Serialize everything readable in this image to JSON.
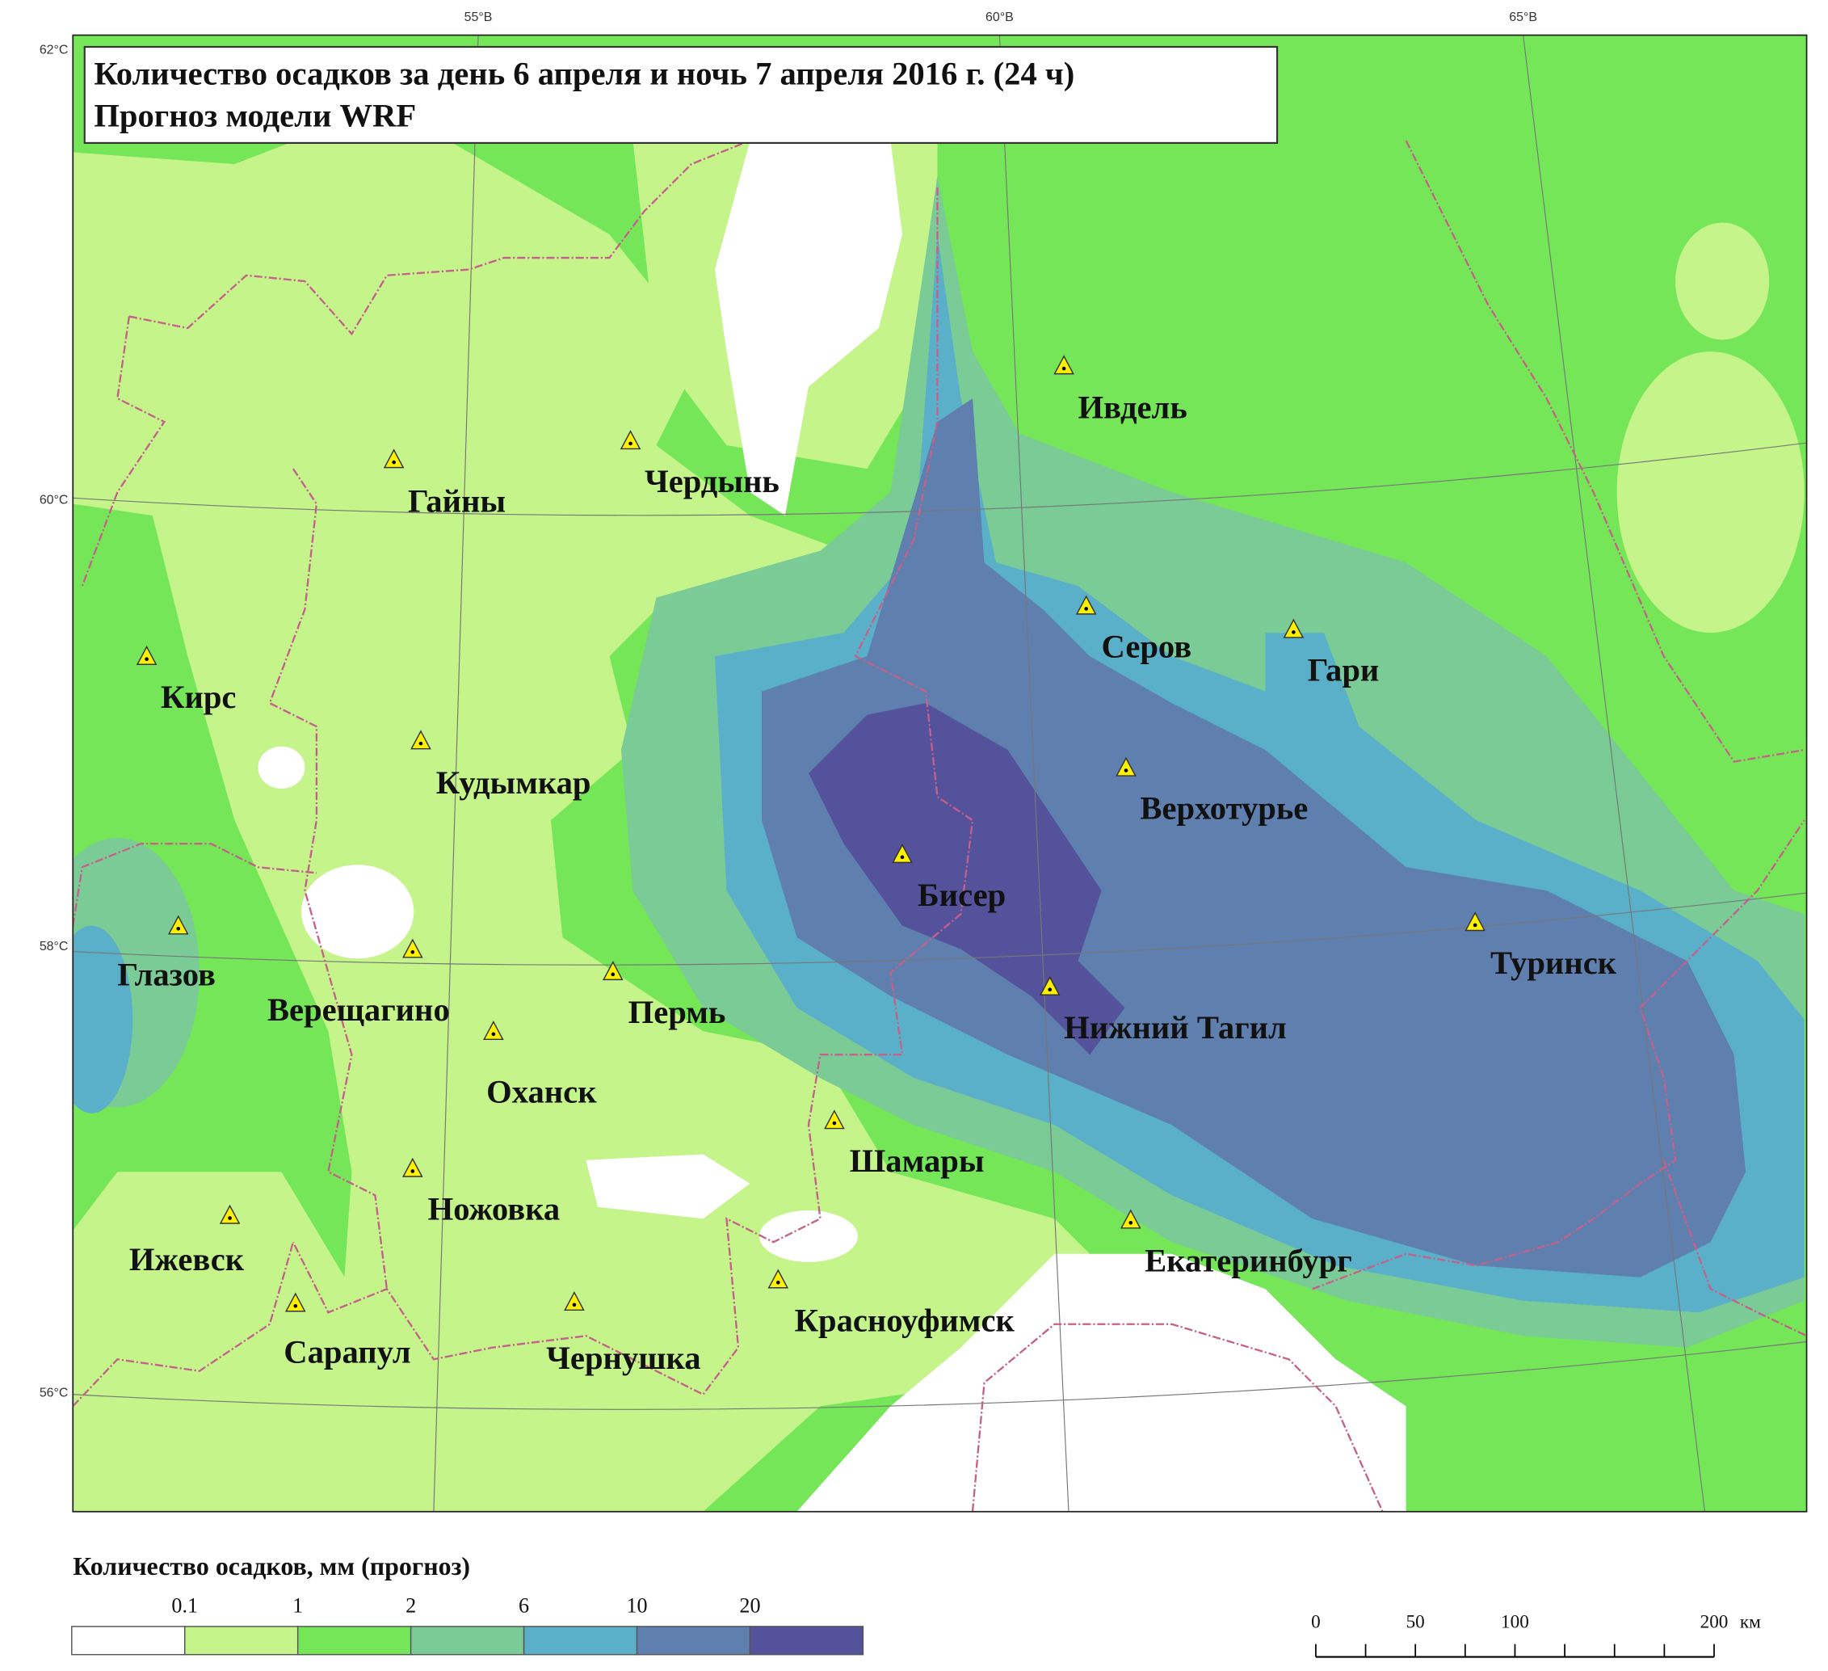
{
  "header": {
    "title_lines": [
      "Количество осадков за день 6 апреля и ночь 7 апреля 2016 г. (24 ч)",
      "Прогноз модели WRF"
    ]
  },
  "graticule": {
    "longitudes": [
      "55°В",
      "60°В",
      "65°В"
    ],
    "latitudes": [
      "62°С",
      "60°С",
      "58°С",
      "56°С"
    ]
  },
  "cities": [
    {
      "name": "Ивдель"
    },
    {
      "name": "Чердынь"
    },
    {
      "name": "Гайны"
    },
    {
      "name": "Кирс"
    },
    {
      "name": "Серов"
    },
    {
      "name": "Гари"
    },
    {
      "name": "Кудымкар"
    },
    {
      "name": "Верхотурье"
    },
    {
      "name": "Бисер"
    },
    {
      "name": "Туринск"
    },
    {
      "name": "Глазов"
    },
    {
      "name": "Верещагино"
    },
    {
      "name": "Пермь"
    },
    {
      "name": "Нижний Тагил"
    },
    {
      "name": "Оханск"
    },
    {
      "name": "Шамары"
    },
    {
      "name": "Ножовка"
    },
    {
      "name": "Ижевск"
    },
    {
      "name": "Екатеринбург"
    },
    {
      "name": "Красноуфимск"
    },
    {
      "name": "Сарапул"
    },
    {
      "name": "Чернушка"
    }
  ],
  "legend": {
    "title": "Количество осадков, мм (прогноз)",
    "thresholds": [
      0.1,
      1,
      2,
      6,
      10,
      20
    ],
    "colors": [
      "#ffffff",
      "#c4f48a",
      "#74e657",
      "#7acb96",
      "#5ab0c8",
      "#5f7faf",
      "#54529a"
    ]
  },
  "scale_bar": {
    "labels": [
      0,
      50,
      100,
      200
    ],
    "unit": "км"
  }
}
